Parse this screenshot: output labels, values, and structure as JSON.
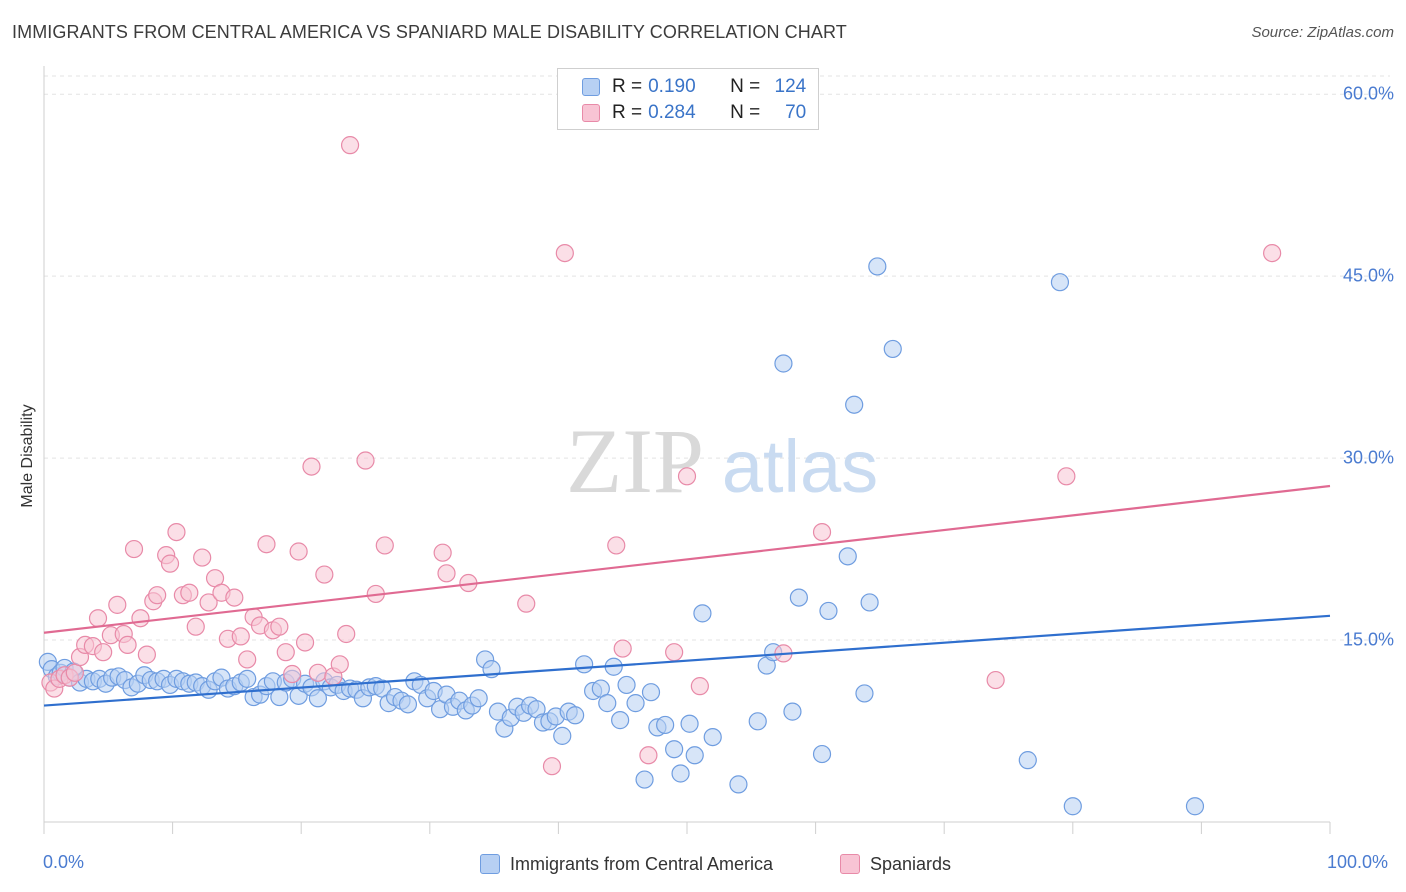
{
  "title": "IMMIGRANTS FROM CENTRAL AMERICA VS SPANIARD MALE DISABILITY CORRELATION CHART",
  "source": "Source: ZipAtlas.com",
  "watermark": {
    "zip": "ZIP",
    "atlas": "atlas"
  },
  "legend": {
    "r_label": "R =",
    "n_label": "N =",
    "items": [
      {
        "r": "0.190",
        "n": "124",
        "fill": "#b7d0f3",
        "stroke": "#6f9de0"
      },
      {
        "r": "0.284",
        "n": "70",
        "fill": "#f8c4d4",
        "stroke": "#e88aa8"
      }
    ]
  },
  "bottom_legend": [
    {
      "label": "Immigrants from Central America",
      "fill": "#b7d0f3",
      "stroke": "#6f9de0"
    },
    {
      "label": "Spaniards",
      "fill": "#f8c4d4",
      "stroke": "#e88aa8"
    }
  ],
  "chart_data": {
    "type": "scatter",
    "title": "IMMIGRANTS FROM CENTRAL AMERICA VS SPANIARD MALE DISABILITY CORRELATION CHART",
    "xlabel": "",
    "ylabel": "Male Disability",
    "xlim": [
      0,
      100
    ],
    "ylim": [
      0,
      61.5
    ],
    "x_tick_labels": [
      "0.0%",
      "100.0%"
    ],
    "y_ticks": [
      15,
      30,
      45,
      60
    ],
    "y_tick_labels": [
      "15.0%",
      "30.0%",
      "45.0%",
      "60.0%"
    ],
    "grid": "horizontal dashed",
    "legend_position": "top-center",
    "series": [
      {
        "name": "Immigrants from Central America",
        "color": "#6f9de0",
        "fill": "#b7d0f3",
        "line_color": "#2f6fce",
        "trend": [
          [
            0,
            9.6
          ],
          [
            100,
            17.0
          ]
        ],
        "points": [
          [
            0.3,
            13.2
          ],
          [
            0.6,
            12.6
          ],
          [
            1.0,
            12.0
          ],
          [
            1.3,
            12.3
          ],
          [
            1.6,
            12.7
          ],
          [
            2.0,
            11.9
          ],
          [
            2.3,
            12.4
          ],
          [
            2.8,
            11.5
          ],
          [
            3.3,
            11.8
          ],
          [
            3.8,
            11.6
          ],
          [
            4.3,
            11.8
          ],
          [
            4.8,
            11.4
          ],
          [
            5.3,
            11.9
          ],
          [
            5.8,
            12.0
          ],
          [
            6.3,
            11.7
          ],
          [
            6.8,
            11.1
          ],
          [
            7.3,
            11.4
          ],
          [
            7.8,
            12.1
          ],
          [
            8.3,
            11.7
          ],
          [
            8.8,
            11.6
          ],
          [
            9.3,
            11.8
          ],
          [
            9.8,
            11.3
          ],
          [
            10.3,
            11.8
          ],
          [
            10.8,
            11.6
          ],
          [
            11.3,
            11.4
          ],
          [
            11.8,
            11.5
          ],
          [
            12.3,
            11.2
          ],
          [
            12.8,
            10.9
          ],
          [
            13.3,
            11.6
          ],
          [
            13.8,
            11.9
          ],
          [
            14.3,
            11.0
          ],
          [
            14.8,
            11.2
          ],
          [
            15.3,
            11.5
          ],
          [
            15.8,
            11.8
          ],
          [
            16.3,
            10.3
          ],
          [
            16.8,
            10.5
          ],
          [
            17.3,
            11.2
          ],
          [
            17.8,
            11.6
          ],
          [
            18.3,
            10.3
          ],
          [
            18.8,
            11.5
          ],
          [
            19.3,
            11.8
          ],
          [
            19.8,
            10.4
          ],
          [
            20.3,
            11.4
          ],
          [
            20.8,
            11.1
          ],
          [
            21.3,
            10.2
          ],
          [
            21.8,
            11.6
          ],
          [
            22.3,
            11.1
          ],
          [
            22.8,
            11.3
          ],
          [
            23.3,
            10.8
          ],
          [
            23.8,
            11.0
          ],
          [
            24.3,
            10.9
          ],
          [
            24.8,
            10.2
          ],
          [
            25.3,
            11.1
          ],
          [
            25.8,
            11.2
          ],
          [
            26.3,
            11.0
          ],
          [
            26.8,
            9.8
          ],
          [
            27.3,
            10.3
          ],
          [
            27.8,
            10.0
          ],
          [
            28.3,
            9.7
          ],
          [
            28.8,
            11.6
          ],
          [
            29.3,
            11.3
          ],
          [
            29.8,
            10.2
          ],
          [
            30.3,
            10.8
          ],
          [
            30.8,
            9.3
          ],
          [
            31.3,
            10.5
          ],
          [
            31.8,
            9.5
          ],
          [
            32.3,
            10.0
          ],
          [
            32.8,
            9.2
          ],
          [
            33.3,
            9.6
          ],
          [
            33.8,
            10.2
          ],
          [
            34.3,
            13.4
          ],
          [
            34.8,
            12.6
          ],
          [
            35.3,
            9.1
          ],
          [
            35.8,
            7.7
          ],
          [
            36.3,
            8.6
          ],
          [
            36.8,
            9.5
          ],
          [
            37.3,
            9.0
          ],
          [
            37.8,
            9.6
          ],
          [
            38.3,
            9.3
          ],
          [
            38.8,
            8.2
          ],
          [
            39.3,
            8.3
          ],
          [
            39.8,
            8.7
          ],
          [
            40.3,
            7.1
          ],
          [
            40.8,
            9.1
          ],
          [
            41.3,
            8.8
          ],
          [
            42.0,
            13.0
          ],
          [
            42.7,
            10.8
          ],
          [
            43.3,
            11.0
          ],
          [
            43.8,
            9.8
          ],
          [
            44.3,
            12.8
          ],
          [
            44.8,
            8.4
          ],
          [
            45.3,
            11.3
          ],
          [
            46.0,
            9.8
          ],
          [
            46.7,
            3.5
          ],
          [
            47.2,
            10.7
          ],
          [
            47.7,
            7.8
          ],
          [
            48.3,
            8.0
          ],
          [
            49.0,
            6.0
          ],
          [
            49.5,
            4.0
          ],
          [
            50.2,
            8.1
          ],
          [
            50.6,
            5.5
          ],
          [
            51.2,
            17.2
          ],
          [
            52.0,
            7.0
          ],
          [
            54.0,
            3.1
          ],
          [
            55.5,
            8.3
          ],
          [
            56.2,
            12.9
          ],
          [
            56.7,
            14.0
          ],
          [
            57.5,
            37.8
          ],
          [
            58.2,
            9.1
          ],
          [
            58.7,
            18.5
          ],
          [
            60.5,
            5.6
          ],
          [
            61.0,
            17.4
          ],
          [
            62.5,
            21.9
          ],
          [
            63.0,
            34.4
          ],
          [
            63.8,
            10.6
          ],
          [
            64.2,
            18.1
          ],
          [
            64.8,
            45.8
          ],
          [
            66.0,
            39.0
          ],
          [
            76.5,
            5.1
          ],
          [
            79.0,
            44.5
          ],
          [
            80.0,
            1.3
          ],
          [
            89.5,
            1.3
          ]
        ]
      },
      {
        "name": "Spaniards",
        "color": "#e88aa8",
        "fill": "#f8c4d4",
        "line_color": "#e06a92",
        "trend": [
          [
            0,
            15.6
          ],
          [
            100,
            27.7
          ]
        ],
        "points": [
          [
            0.5,
            11.5
          ],
          [
            0.8,
            11.0
          ],
          [
            1.2,
            11.8
          ],
          [
            1.6,
            12.1
          ],
          [
            2.0,
            11.9
          ],
          [
            2.4,
            12.3
          ],
          [
            2.8,
            13.6
          ],
          [
            3.2,
            14.6
          ],
          [
            3.8,
            14.5
          ],
          [
            4.2,
            16.8
          ],
          [
            4.6,
            14.0
          ],
          [
            5.2,
            15.4
          ],
          [
            5.7,
            17.9
          ],
          [
            6.2,
            15.5
          ],
          [
            6.5,
            14.6
          ],
          [
            7.0,
            22.5
          ],
          [
            7.5,
            16.8
          ],
          [
            8.0,
            13.8
          ],
          [
            8.5,
            18.2
          ],
          [
            8.8,
            18.7
          ],
          [
            9.5,
            22.0
          ],
          [
            9.8,
            21.3
          ],
          [
            10.3,
            23.9
          ],
          [
            10.8,
            18.7
          ],
          [
            11.3,
            18.9
          ],
          [
            11.8,
            16.1
          ],
          [
            12.3,
            21.8
          ],
          [
            12.8,
            18.1
          ],
          [
            13.3,
            20.1
          ],
          [
            13.8,
            18.9
          ],
          [
            14.3,
            15.1
          ],
          [
            14.8,
            18.5
          ],
          [
            15.3,
            15.3
          ],
          [
            15.8,
            13.4
          ],
          [
            16.3,
            16.9
          ],
          [
            16.8,
            16.2
          ],
          [
            17.3,
            22.9
          ],
          [
            17.8,
            15.8
          ],
          [
            18.3,
            16.1
          ],
          [
            18.8,
            14.0
          ],
          [
            19.3,
            12.2
          ],
          [
            19.8,
            22.3
          ],
          [
            20.3,
            14.8
          ],
          [
            20.8,
            29.3
          ],
          [
            21.3,
            12.3
          ],
          [
            21.8,
            20.4
          ],
          [
            22.5,
            12.0
          ],
          [
            23.0,
            13.0
          ],
          [
            23.5,
            15.5
          ],
          [
            23.8,
            55.8
          ],
          [
            25.0,
            29.8
          ],
          [
            25.8,
            18.8
          ],
          [
            26.5,
            22.8
          ],
          [
            31.0,
            22.2
          ],
          [
            31.3,
            20.5
          ],
          [
            33.0,
            19.7
          ],
          [
            37.5,
            18.0
          ],
          [
            39.5,
            4.6
          ],
          [
            40.5,
            46.9
          ],
          [
            44.5,
            22.8
          ],
          [
            45.0,
            14.3
          ],
          [
            47.0,
            5.5
          ],
          [
            49.0,
            14.0
          ],
          [
            50.0,
            28.5
          ],
          [
            51.0,
            11.2
          ],
          [
            57.5,
            13.9
          ],
          [
            60.5,
            23.9
          ],
          [
            74.0,
            11.7
          ],
          [
            79.5,
            28.5
          ],
          [
            95.5,
            46.9
          ]
        ]
      }
    ]
  }
}
